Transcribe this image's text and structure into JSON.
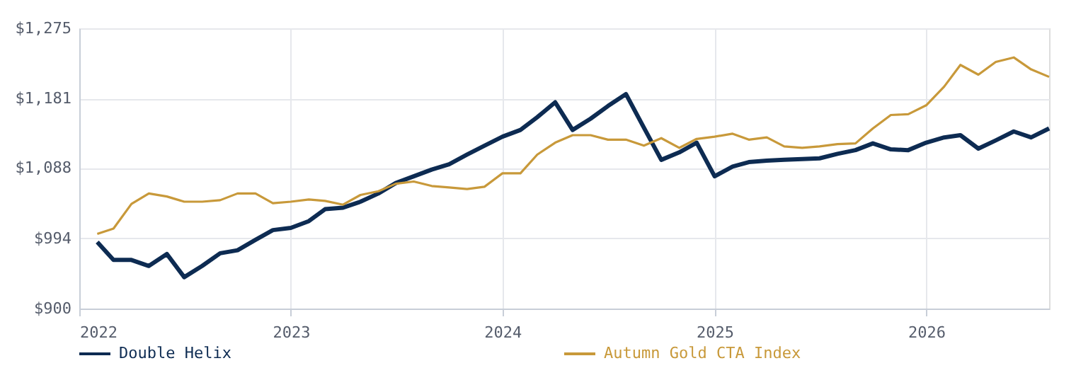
{
  "chart_data": {
    "type": "line",
    "x": [
      "2022-02",
      "2022-03",
      "2022-04",
      "2022-05",
      "2022-06",
      "2022-07",
      "2022-08",
      "2022-09",
      "2022-10",
      "2022-11",
      "2022-12",
      "2023-01",
      "2023-02",
      "2023-03",
      "2023-04",
      "2023-05",
      "2023-06",
      "2023-07",
      "2023-08",
      "2023-09",
      "2023-10",
      "2023-11",
      "2023-12",
      "2024-01",
      "2024-02",
      "2024-03",
      "2024-04",
      "2024-05",
      "2024-06",
      "2024-07",
      "2024-08",
      "2024-09",
      "2024-10",
      "2024-11",
      "2024-12",
      "2025-01",
      "2025-02",
      "2025-03",
      "2025-04",
      "2025-05",
      "2025-06",
      "2025-07",
      "2025-08",
      "2025-09",
      "2025-10",
      "2025-11",
      "2025-12",
      "2026-01",
      "2026-02",
      "2026-03",
      "2026-04",
      "2026-05",
      "2026-06",
      "2026-07",
      "2026-08"
    ],
    "series": [
      {
        "name": "Double Helix",
        "color": "#0d2b52",
        "values": [
          989,
          965,
          965,
          957,
          973,
          942,
          957,
          974,
          978,
          992,
          1005,
          1008,
          1017,
          1033,
          1035,
          1043,
          1054,
          1068,
          1077,
          1086,
          1093,
          1106,
          1118,
          1130,
          1139,
          1156,
          1176,
          1139,
          1154,
          1171,
          1187,
          1142,
          1099,
          1109,
          1122,
          1077,
          1090,
          1096,
          1098,
          1099,
          1100,
          1101,
          1107,
          1112,
          1121,
          1113,
          1112,
          1122,
          1129,
          1132,
          1114,
          1125,
          1137,
          1129,
          1141
        ]
      },
      {
        "name": "Autumn Gold CTA Index",
        "color": "#c8993a",
        "values": [
          1000,
          1007,
          1040,
          1054,
          1050,
          1043,
          1043,
          1045,
          1054,
          1054,
          1041,
          1043,
          1046,
          1044,
          1039,
          1052,
          1057,
          1067,
          1070,
          1064,
          1062,
          1060,
          1063,
          1081,
          1081,
          1106,
          1122,
          1132,
          1132,
          1126,
          1126,
          1118,
          1128,
          1115,
          1127,
          1130,
          1134,
          1126,
          1129,
          1117,
          1115,
          1117,
          1120,
          1121,
          1141,
          1159,
          1160,
          1172,
          1197,
          1226,
          1213,
          1230,
          1236,
          1220,
          1210
        ]
      }
    ],
    "xlim": [
      "2022-01",
      "2026-08"
    ],
    "xticks": [
      {
        "value": "2022-01",
        "label": "2022"
      },
      {
        "value": "2023-01",
        "label": "2023"
      },
      {
        "value": "2024-01",
        "label": "2024"
      },
      {
        "value": "2025-01",
        "label": "2025"
      },
      {
        "value": "2026-01",
        "label": "2026"
      }
    ],
    "ylim": [
      900,
      1275
    ],
    "yticks": [
      {
        "value": 900,
        "label": "$900"
      },
      {
        "value": 994,
        "label": "$994"
      },
      {
        "value": 1088,
        "label": "$1,088"
      },
      {
        "value": 1181,
        "label": "$1,181"
      },
      {
        "value": 1275,
        "label": "$1,275"
      }
    ],
    "grid": true,
    "legend": "bottom",
    "line_style": "solid",
    "marker": "none"
  }
}
